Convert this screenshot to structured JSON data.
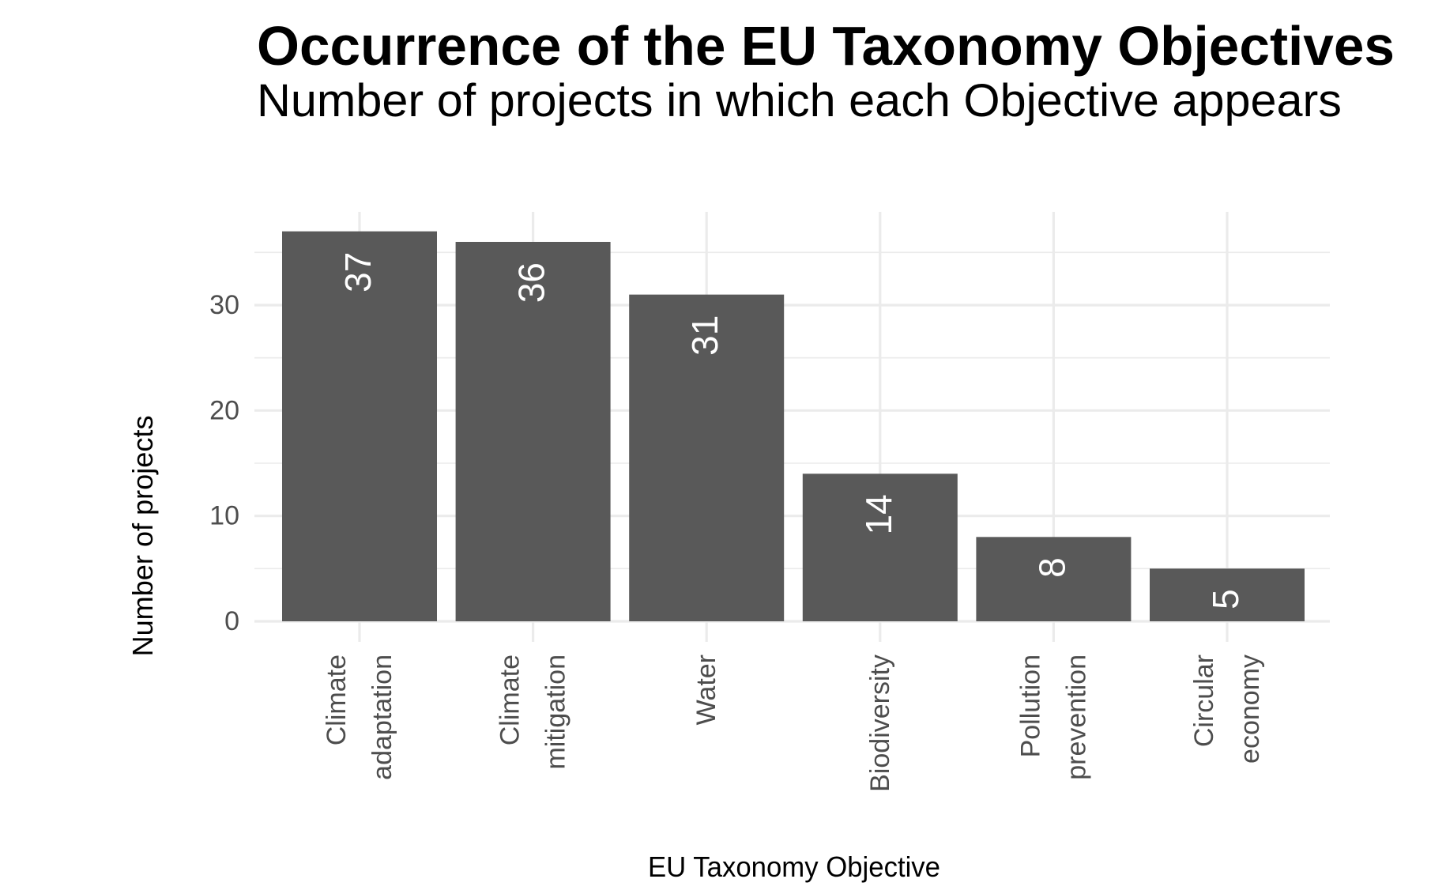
{
  "chart_data": {
    "type": "bar",
    "title": "Occurrence of the EU Taxonomy Objectives",
    "subtitle": "Number of projects in which each Objective appears",
    "xlabel": "EU Taxonomy Objective",
    "ylabel": "Number of projects",
    "categories": [
      [
        "Climate",
        "adaptation"
      ],
      [
        "Climate",
        "mitigation"
      ],
      [
        "Water"
      ],
      [
        "Biodiversity"
      ],
      [
        "Pollution",
        "prevention"
      ],
      [
        "Circular",
        "economy"
      ]
    ],
    "values": [
      37,
      36,
      31,
      14,
      8,
      5
    ],
    "data_labels": [
      "37",
      "36",
      "31",
      "14",
      "8",
      "5"
    ],
    "y_ticks": [
      0,
      10,
      20,
      30
    ],
    "y_tick_labels": [
      "0",
      "10",
      "20",
      "30"
    ],
    "ylim": [
      0,
      38.85
    ],
    "bar_color": "#595959",
    "label_color": "#ffffff",
    "grid": true,
    "legend": "none"
  }
}
